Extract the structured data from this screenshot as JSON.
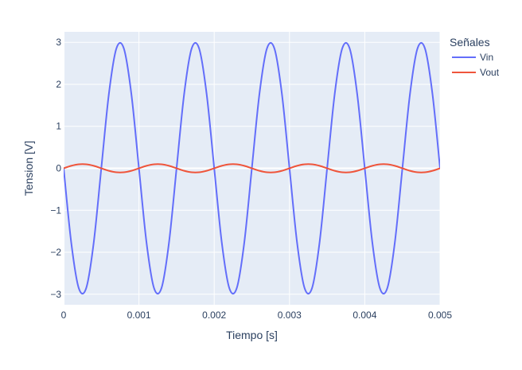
{
  "chart_data": {
    "type": "line",
    "title": "",
    "xlabel": "Tiempo [s]",
    "ylabel": "Tension [V]",
    "xlim": [
      0,
      0.005
    ],
    "ylim": [
      -3.25,
      3.25
    ],
    "x_ticks": [
      0,
      0.001,
      0.002,
      0.003,
      0.004,
      0.005
    ],
    "x_tick_labels": [
      "0",
      "0.001",
      "0.002",
      "0.003",
      "0.004",
      "0.005"
    ],
    "y_ticks": [
      -3,
      -2,
      -1,
      0,
      1,
      2,
      3
    ],
    "y_tick_labels": [
      "−3",
      "−2",
      "−1",
      "0",
      "1",
      "2",
      "3"
    ],
    "grid": true,
    "plot_background": "#e5ecf6",
    "legend": {
      "title": "Señales",
      "placement": "top-right"
    },
    "x": [
      0,
      0.0001,
      0.0002,
      0.0003,
      0.0004,
      0.0005,
      0.0006,
      0.0007,
      0.0008,
      0.0009,
      0.001,
      0.0011,
      0.0012,
      0.0013,
      0.0014,
      0.0015,
      0.0016,
      0.0017,
      0.0018,
      0.0019,
      0.002,
      0.0021,
      0.0022,
      0.0023,
      0.0024,
      0.0025,
      0.0026,
      0.0027,
      0.0028,
      0.0029,
      0.003,
      0.0031,
      0.0032,
      0.0033,
      0.0034,
      0.0035,
      0.0036,
      0.0037,
      0.0038,
      0.0039,
      0.004,
      0.0041,
      0.0042,
      0.0043,
      0.0044,
      0.0045,
      0.0046,
      0.0047,
      0.0048,
      0.0049,
      0.005
    ],
    "series": [
      {
        "name": "Vin",
        "color": "#636efa",
        "values": [
          0,
          -1.76,
          -2.85,
          -2.85,
          -1.76,
          0,
          1.76,
          2.85,
          2.85,
          1.76,
          0,
          -1.76,
          -2.85,
          -2.85,
          -1.76,
          0,
          1.76,
          2.85,
          2.85,
          1.76,
          0,
          -1.76,
          -2.85,
          -2.85,
          -1.76,
          0,
          1.76,
          2.85,
          2.85,
          1.76,
          0,
          -1.76,
          -2.85,
          -2.85,
          -1.76,
          0,
          1.76,
          2.85,
          2.85,
          1.76,
          0,
          -1.76,
          -2.85,
          -2.85,
          -1.76,
          0,
          1.76,
          2.85,
          2.85,
          1.76,
          0
        ]
      },
      {
        "name": "Vout",
        "color": "#ef553b",
        "values": [
          0,
          0.059,
          0.095,
          0.095,
          0.059,
          0,
          -0.059,
          -0.095,
          -0.095,
          -0.059,
          0,
          0.059,
          0.095,
          0.095,
          0.059,
          0,
          -0.059,
          -0.095,
          -0.095,
          -0.059,
          0,
          0.059,
          0.095,
          0.095,
          0.059,
          0,
          -0.059,
          -0.095,
          -0.095,
          -0.059,
          0,
          0.059,
          0.095,
          0.095,
          0.059,
          0,
          -0.059,
          -0.095,
          -0.095,
          -0.059,
          0,
          0.059,
          0.095,
          0.095,
          0.059,
          0,
          -0.059,
          -0.095,
          -0.095,
          -0.059,
          0
        ]
      }
    ]
  }
}
